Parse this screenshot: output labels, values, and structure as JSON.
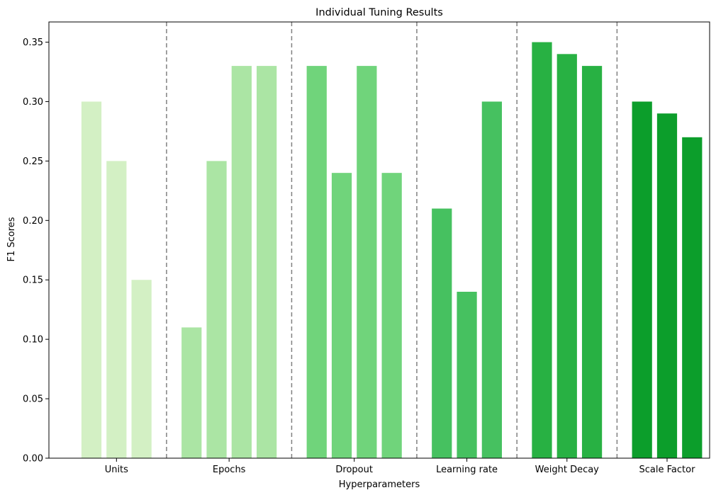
{
  "chart_data": {
    "type": "bar",
    "title": "Individual Tuning Results",
    "xlabel": "Hyperparameters",
    "ylabel": "F1 Scores",
    "ylim": [
      0,
      0.367
    ],
    "yticks": [
      0.0,
      0.05,
      0.1,
      0.15,
      0.2,
      0.25,
      0.3,
      0.35
    ],
    "ytick_labels": [
      "0.00",
      "0.05",
      "0.10",
      "0.15",
      "0.20",
      "0.25",
      "0.30",
      "0.35"
    ],
    "grid": false,
    "group_separators": "dashed-gray",
    "groups": [
      {
        "label": "Units",
        "color": "#d3f0c4",
        "values": [
          0.3,
          0.25,
          0.15
        ]
      },
      {
        "label": "Epochs",
        "color": "#abe5a4",
        "values": [
          0.11,
          0.25,
          0.33,
          0.33
        ]
      },
      {
        "label": "Dropout",
        "color": "#70d47b",
        "values": [
          0.33,
          0.24,
          0.33,
          0.24
        ]
      },
      {
        "label": "Learning rate",
        "color": "#46c160",
        "values": [
          0.21,
          0.14,
          0.3
        ]
      },
      {
        "label": "Weight Decay",
        "color": "#28b143",
        "values": [
          0.35,
          0.34,
          0.33
        ]
      },
      {
        "label": "Scale Factor",
        "color": "#0c9e2b",
        "values": [
          0.3,
          0.29,
          0.27
        ]
      }
    ]
  },
  "colors": {
    "separator": "#808080",
    "axis": "#000000"
  }
}
